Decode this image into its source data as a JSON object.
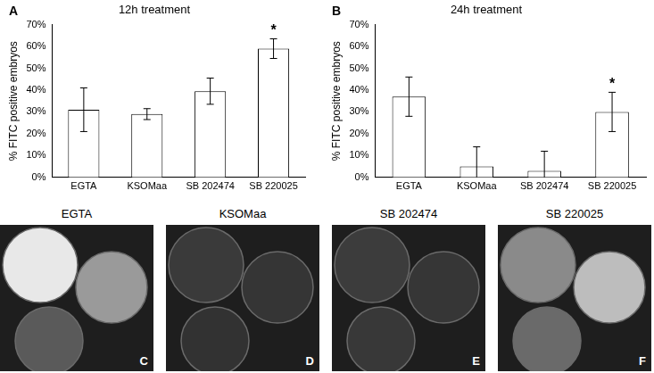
{
  "chart_data": [
    {
      "type": "bar",
      "panel": "A",
      "title": "12h treatment",
      "y_label": "% FITC positive embryos",
      "categories": [
        "EGTA",
        "KSOMaa",
        "SB 202474",
        "SB 220025"
      ],
      "values": [
        31,
        29,
        39.5,
        59
      ],
      "errors": [
        10,
        2.5,
        6,
        4.5
      ],
      "color": "#ffffff",
      "ylim": [
        0,
        70
      ],
      "yticks": [
        {
          "value": 0,
          "label": "0%"
        },
        {
          "value": 10,
          "label": "10%"
        },
        {
          "value": 20,
          "label": "20%"
        },
        {
          "value": 30,
          "label": "30%"
        },
        {
          "value": 40,
          "label": "40%"
        },
        {
          "value": 50,
          "label": "50%"
        },
        {
          "value": 60,
          "label": "60%"
        },
        {
          "value": 70,
          "label": "70%"
        }
      ],
      "grid": false,
      "annotations": [
        {
          "category": "SB 220025",
          "text": "*"
        }
      ]
    },
    {
      "type": "bar",
      "panel": "B",
      "title": "24h treatment",
      "y_label": "% FITC positive embryos",
      "categories": [
        "EGTA",
        "KSOMaa",
        "SB 202474",
        "SB 220025"
      ],
      "values": [
        37,
        5,
        3,
        30
      ],
      "errors": [
        9,
        9,
        9,
        9
      ],
      "color": "#ffffff",
      "ylim": [
        0,
        70
      ],
      "yticks": [
        {
          "value": 0,
          "label": "0%"
        },
        {
          "value": 10,
          "label": "10%"
        },
        {
          "value": 20,
          "label": "20%"
        },
        {
          "value": 30,
          "label": "30%"
        },
        {
          "value": 40,
          "label": "40%"
        },
        {
          "value": 50,
          "label": "50%"
        },
        {
          "value": 60,
          "label": "60%"
        },
        {
          "value": 70,
          "label": "70%"
        }
      ],
      "grid": false,
      "annotations": [
        {
          "category": "SB 220025",
          "text": "*"
        }
      ]
    }
  ],
  "images": [
    {
      "panel": "C",
      "caption": "EGTA"
    },
    {
      "panel": "D",
      "caption": "KSOMaa"
    },
    {
      "panel": "E",
      "caption": "SB 202474"
    },
    {
      "panel": "F",
      "caption": "SB 220025"
    }
  ]
}
